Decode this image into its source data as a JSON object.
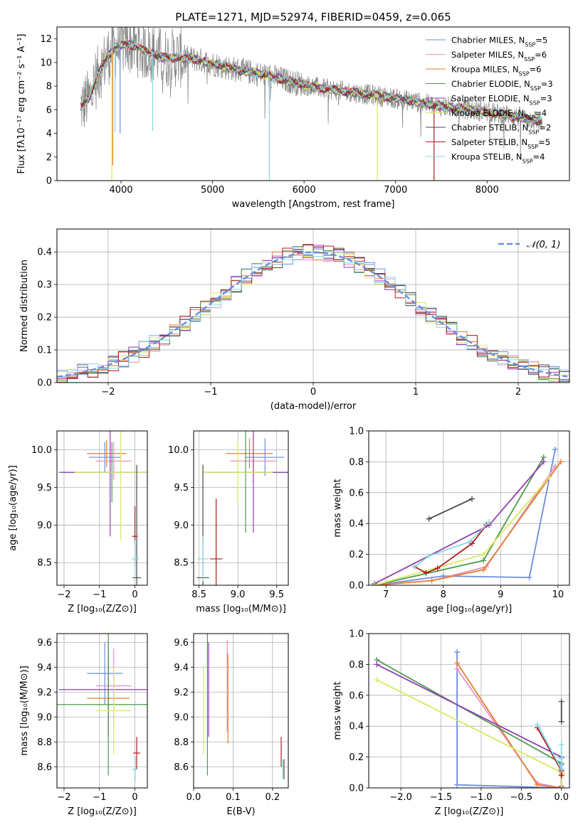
{
  "colors": {
    "Chabrier MILES": "#6a8ee0",
    "Salpeter MILES": "#e68fc8",
    "Kroupa MILES": "#e67e2e",
    "Chabrier ELODIE": "#4e9a4e",
    "Salpeter ELODIE": "#8e3fb0",
    "Kroupa ELODIE": "#d8e860",
    "Chabrier STELIB": "#4a4a4a",
    "Salpeter STELIB": "#b01c1c",
    "Kroupa STELIB": "#88d8e8",
    "data": "#8c8c8c",
    "normal_curve": "#6a8ee0",
    "grid": "#b0b0b0"
  },
  "chart_data": [
    {
      "id": "spectrum",
      "type": "line",
      "title": "PLATE=1271, MJD=52974, FIBERID=0459, z=0.065",
      "xlabel": "wavelength [Angstrom, rest frame]",
      "ylabel": "Flux [fλ10⁻¹⁷ erg cm⁻² s⁻¹ A⁻¹]",
      "xlim": [
        3300,
        8900
      ],
      "ylim": [
        0,
        13
      ],
      "xticks": [
        4000,
        5000,
        6000,
        7000,
        8000
      ],
      "yticks": [
        0,
        2,
        4,
        6,
        8,
        10,
        12
      ],
      "legend_position": "top-right",
      "legend": [
        {
          "series": "Chabrier MILES",
          "label": "Chabrier MILES, N_SSP=5"
        },
        {
          "series": "Salpeter MILES",
          "label": "Salpeter MILES, N_SSP=6"
        },
        {
          "series": "Kroupa MILES",
          "label": "Kroupa MILES, N_SSP=6"
        },
        {
          "series": "Chabrier ELODIE",
          "label": "Chabrier ELODIE, N_SSP=3"
        },
        {
          "series": "Salpeter ELODIE",
          "label": "Salpeter ELODIE, N_SSP=3"
        },
        {
          "series": "Kroupa ELODIE",
          "label": "Kroupa ELODIE, N_SSP=4"
        },
        {
          "series": "Chabrier STELIB",
          "label": "Chabrier STELIB, N_SSP=2"
        },
        {
          "series": "Salpeter STELIB",
          "label": "Salpeter STELIB, N_SSP=5"
        },
        {
          "series": "Kroupa STELIB",
          "label": "Kroupa STELIB, N_SSP=4"
        }
      ],
      "data_envelope": {
        "x": [
          3560,
          3650,
          3750,
          3850,
          3950,
          4050,
          4150,
          4250,
          4350,
          4450,
          4600,
          4800,
          5000,
          5200,
          5400,
          5600,
          5800,
          6000,
          6200,
          6400,
          6600,
          6800,
          7000,
          7200,
          7400,
          7600,
          7800,
          8000,
          8200,
          8400,
          8600
        ],
        "y": [
          6.2,
          7.0,
          9.0,
          10.5,
          11.3,
          11.6,
          11.4,
          11.0,
          10.8,
          10.4,
          10.4,
          10.3,
          9.9,
          9.5,
          9.2,
          8.9,
          8.5,
          8.1,
          7.8,
          7.6,
          7.4,
          7.2,
          6.95,
          6.7,
          6.4,
          6.2,
          6.0,
          5.8,
          5.6,
          5.3,
          5.0
        ]
      },
      "model_dips": [
        {
          "series": "Kroupa ELODIE",
          "x": 3900,
          "y": 0
        },
        {
          "series": "Kroupa MILES",
          "x": 3910,
          "y": 1.3
        },
        {
          "series": "Kroupa STELIB",
          "x": 3935,
          "y": 4.1
        },
        {
          "series": "Chabrier MILES",
          "x": 3990,
          "y": 4.0
        },
        {
          "series": "Kroupa STELIB",
          "x": 4345,
          "y": 4.2
        },
        {
          "series": "Kroupa STELIB",
          "x": 5620,
          "y": 0
        },
        {
          "series": "Kroupa ELODIE",
          "x": 6800,
          "y": 0
        },
        {
          "series": "Salpeter STELIB",
          "x": 7420,
          "y": 0
        }
      ]
    },
    {
      "id": "residuals",
      "type": "line",
      "xlabel": "(data-model)/error",
      "ylabel": "Normed distribution",
      "xlim": [
        -2.5,
        2.5
      ],
      "ylim": [
        0,
        0.47
      ],
      "xticks": [
        -2,
        -1,
        0,
        1,
        2
      ],
      "yticks": [
        0.0,
        0.1,
        0.2,
        0.3,
        0.4
      ],
      "legend": [
        {
          "label": "𝒩(0, 1)"
        }
      ],
      "legend_position": "top-right",
      "normal": {
        "mean": 0,
        "sigma": 1
      }
    },
    {
      "id": "age_vs_Z",
      "type": "scatter",
      "xlabel": "Z [log₁₀(Z/Z⊙)]",
      "ylabel": "age  [log₁₀(age/yr)]",
      "xlim": [
        -2.2,
        0.35
      ],
      "ylim": [
        8.2,
        10.25
      ],
      "xticks": [
        -2,
        -1,
        0
      ],
      "yticks": [
        8.5,
        9.0,
        9.5,
        10.0
      ],
      "points": [
        {
          "series": "Kroupa MILES",
          "x": -0.8,
          "y": 9.95,
          "xerr": 0.55,
          "yerr": 0.18
        },
        {
          "series": "Chabrier MILES",
          "x": -0.85,
          "y": 9.9,
          "xerr": 0.45,
          "yerr": 0.2
        },
        {
          "series": "Salpeter MILES",
          "x": -0.6,
          "y": 9.85,
          "xerr": 0.5,
          "yerr": 0.25
        },
        {
          "series": "Chabrier ELODIE",
          "x": -0.65,
          "y": 9.7,
          "xerr": 1.5,
          "yerr": 0.4
        },
        {
          "series": "Salpeter ELODIE",
          "x": -0.7,
          "y": 9.7,
          "xerr": 1.4,
          "yerr": 0.85
        },
        {
          "series": "Kroupa ELODIE",
          "x": -0.4,
          "y": 9.7,
          "xerr": 1.3,
          "yerr": 0.9
        },
        {
          "series": "Chabrier STELIB",
          "x": 0.05,
          "y": 8.3,
          "xerr": 0.12,
          "yerr": 1.5
        },
        {
          "series": "Salpeter STELIB",
          "x": 0.0,
          "y": 8.85,
          "xerr": 0.08,
          "yerr": 0.4
        },
        {
          "series": "Kroupa STELIB",
          "x": 0.0,
          "y": 8.55,
          "xerr": 0.1,
          "yerr": 0.25
        }
      ]
    },
    {
      "id": "age_vs_mass",
      "type": "scatter",
      "xlabel": "mass [log₁₀(M/M⊙)]",
      "ylabel": "",
      "xlim": [
        8.43,
        9.65
      ],
      "ylim": [
        8.2,
        10.25
      ],
      "xticks": [
        8.5,
        9.0,
        9.5
      ],
      "yticks": [
        8.5,
        9.0,
        9.5,
        10.0
      ],
      "points": [
        {
          "series": "Kroupa MILES",
          "x": 9.15,
          "y": 9.95,
          "xerr": 0.3,
          "yerr": 0.2
        },
        {
          "series": "Chabrier MILES",
          "x": 9.35,
          "y": 9.9,
          "xerr": 0.25,
          "yerr": 0.25
        },
        {
          "series": "Salpeter MILES",
          "x": 9.2,
          "y": 9.85,
          "xerr": 0.3,
          "yerr": 0.3
        },
        {
          "series": "Chabrier ELODIE",
          "x": 9.1,
          "y": 9.7,
          "xerr": 0.55,
          "yerr": 0.8
        },
        {
          "series": "Salpeter ELODIE",
          "x": 9.2,
          "y": 9.7,
          "xerr": 0.55,
          "yerr": 0.8
        },
        {
          "series": "Kroupa ELODIE",
          "x": 9.0,
          "y": 9.7,
          "xerr": 0.45,
          "yerr": 0.4
        },
        {
          "series": "Chabrier STELIB",
          "x": 8.55,
          "y": 8.3,
          "xerr": 0.08,
          "yerr": 1.5
        },
        {
          "series": "Salpeter STELIB",
          "x": 8.72,
          "y": 8.55,
          "xerr": 0.08,
          "yerr": 0.8
        },
        {
          "series": "Kroupa STELIB",
          "x": 8.55,
          "y": 8.55,
          "xerr": 0.07,
          "yerr": 0.3
        }
      ]
    },
    {
      "id": "weight_vs_age",
      "type": "line",
      "xlabel": "age  [log₁₀(age/yr)]",
      "ylabel": "mass weight",
      "xlim": [
        6.7,
        10.2
      ],
      "ylim": [
        0,
        1.0
      ],
      "xticks": [
        7,
        8,
        9,
        10
      ],
      "yticks": [
        0.0,
        0.2,
        0.4,
        0.6,
        0.8,
        1.0
      ],
      "series": [
        {
          "series": "Chabrier MILES",
          "x": [
            6.8,
            8.0,
            9.5,
            9.95
          ],
          "y": [
            0.0,
            0.06,
            0.05,
            0.88
          ]
        },
        {
          "series": "Salpeter MILES",
          "x": [
            6.8,
            7.8,
            8.75,
            9.95
          ],
          "y": [
            0.0,
            0.03,
            0.12,
            0.77
          ]
        },
        {
          "series": "Kroupa MILES",
          "x": [
            6.8,
            7.8,
            8.7,
            10.05
          ],
          "y": [
            0.0,
            0.03,
            0.1,
            0.8
          ]
        },
        {
          "series": "Chabrier ELODIE",
          "x": [
            6.8,
            8.7,
            9.75
          ],
          "y": [
            0.0,
            0.16,
            0.83
          ]
        },
        {
          "series": "Salpeter ELODIE",
          "x": [
            6.8,
            8.8,
            9.75
          ],
          "y": [
            0.01,
            0.39,
            0.8
          ]
        },
        {
          "series": "Kroupa ELODIE",
          "x": [
            6.8,
            8.7,
            9.85
          ],
          "y": [
            0.0,
            0.2,
            0.7
          ]
        },
        {
          "series": "Chabrier STELIB",
          "x": [
            7.75,
            8.5
          ],
          "y": [
            0.43,
            0.56
          ]
        },
        {
          "series": "Salpeter STELIB",
          "x": [
            7.5,
            7.7,
            7.9,
            8.5,
            8.75
          ],
          "y": [
            0.12,
            0.08,
            0.11,
            0.27,
            0.39
          ]
        },
        {
          "series": "Kroupa STELIB",
          "x": [
            7.5,
            7.75,
            8.45,
            8.8
          ],
          "y": [
            0.12,
            0.19,
            0.28,
            0.41
          ]
        }
      ]
    },
    {
      "id": "mass_vs_Z",
      "type": "scatter",
      "xlabel": "Z [log₁₀(Z/Z⊙)]",
      "ylabel": "mass [log₁₀(M/M⊙)]",
      "xlim": [
        -2.2,
        0.35
      ],
      "ylim": [
        8.43,
        9.67
      ],
      "xticks": [
        -2,
        -1,
        0
      ],
      "yticks": [
        8.6,
        8.8,
        9.0,
        9.2,
        9.4,
        9.6
      ],
      "points": [
        {
          "series": "Chabrier MILES",
          "x": -0.85,
          "y": 9.35,
          "xerr": 0.5,
          "yerr": 0.25
        },
        {
          "series": "Salpeter MILES",
          "x": -0.6,
          "y": 9.25,
          "xerr": 0.5,
          "yerr": 0.3
        },
        {
          "series": "Kroupa MILES",
          "x": -0.75,
          "y": 9.15,
          "xerr": 0.6,
          "yerr": 0.3
        },
        {
          "series": "Salpeter ELODIE",
          "x": -0.75,
          "y": 9.22,
          "xerr": 1.4,
          "yerr": 0.38
        },
        {
          "series": "Chabrier ELODIE",
          "x": -0.75,
          "y": 9.1,
          "xerr": 1.5,
          "yerr": 0.57
        },
        {
          "series": "Kroupa ELODIE",
          "x": -0.6,
          "y": 9.05,
          "xerr": 0.5,
          "yerr": 0.35
        },
        {
          "series": "Chabrier STELIB",
          "x": 0.0,
          "y": 8.58,
          "xerr": 0.05,
          "yerr": 0.1
        },
        {
          "series": "Salpeter STELIB",
          "x": 0.05,
          "y": 8.71,
          "xerr": 0.1,
          "yerr": 0.13
        },
        {
          "series": "Kroupa STELIB",
          "x": 0.0,
          "y": 8.58,
          "xerr": 0.08,
          "yerr": 0.1
        }
      ]
    },
    {
      "id": "mass_vs_EBV",
      "type": "scatter",
      "xlabel": "E(B-V)",
      "ylabel": "",
      "xlim": [
        0.0,
        0.24
      ],
      "ylim": [
        8.43,
        9.67
      ],
      "xticks": [
        0.0,
        0.1,
        0.2
      ],
      "yticks": [
        8.6,
        8.8,
        9.0,
        9.2,
        9.4,
        9.6
      ],
      "points": [
        {
          "series": "Kroupa ELODIE",
          "x": 0.025,
          "y": 9.05,
          "xerr": 0,
          "yerr": 0.35
        },
        {
          "series": "Chabrier ELODIE",
          "x": 0.035,
          "y": 9.1,
          "xerr": 0,
          "yerr": 0.57
        },
        {
          "series": "Salpeter ELODIE",
          "x": 0.038,
          "y": 9.22,
          "xerr": 0,
          "yerr": 0.38
        },
        {
          "series": "Salpeter MILES",
          "x": 0.085,
          "y": 9.25,
          "xerr": 0,
          "yerr": 0.37
        },
        {
          "series": "Kroupa MILES",
          "x": 0.087,
          "y": 9.15,
          "xerr": 0,
          "yerr": 0.36
        },
        {
          "series": "Salpeter STELIB",
          "x": 0.222,
          "y": 8.72,
          "xerr": 0,
          "yerr": 0.12
        },
        {
          "series": "Kroupa STELIB",
          "x": 0.226,
          "y": 8.58,
          "xerr": 0,
          "yerr": 0.08
        },
        {
          "series": "Chabrier STELIB",
          "x": 0.229,
          "y": 8.58,
          "xerr": 0,
          "yerr": 0.08
        }
      ]
    },
    {
      "id": "weight_vs_Z",
      "type": "line",
      "xlabel": "Z [log₁₀(Z/Z⊙)]",
      "ylabel": "mass weight",
      "xlim": [
        -2.4,
        0.1
      ],
      "ylim": [
        0,
        1.0
      ],
      "xticks": [
        -2.0,
        -1.5,
        -1.0,
        -0.5,
        0.0
      ],
      "yticks": [
        0.0,
        0.2,
        0.4,
        0.6,
        0.8,
        1.0
      ],
      "series": [
        {
          "series": "Chabrier MILES",
          "x": [
            -1.3,
            -1.3,
            0.0,
            0.0
          ],
          "y": [
            0.88,
            0.02,
            0.0,
            0.15
          ]
        },
        {
          "series": "Salpeter MILES",
          "x": [
            -1.3,
            -0.3,
            0.0,
            0.0
          ],
          "y": [
            0.77,
            0.03,
            0.0,
            0.12
          ]
        },
        {
          "series": "Kroupa MILES",
          "x": [
            -1.3,
            -0.3,
            0.0,
            0.0
          ],
          "y": [
            0.81,
            0.02,
            0.0,
            0.09
          ]
        },
        {
          "series": "Chabrier ELODIE",
          "x": [
            -2.3,
            0.0,
            0.0
          ],
          "y": [
            0.83,
            0.16,
            0.0
          ]
        },
        {
          "series": "Salpeter ELODIE",
          "x": [
            -2.3,
            0.0,
            0.0
          ],
          "y": [
            0.8,
            0.2,
            0.01
          ]
        },
        {
          "series": "Kroupa ELODIE",
          "x": [
            -2.3,
            0.0,
            0.0
          ],
          "y": [
            0.7,
            0.1,
            0.0
          ]
        },
        {
          "series": "Chabrier STELIB",
          "x": [
            0.0,
            0.0
          ],
          "y": [
            0.43,
            0.56
          ]
        },
        {
          "series": "Salpeter STELIB",
          "x": [
            -0.3,
            0.0,
            0.0,
            0.0
          ],
          "y": [
            0.39,
            0.11,
            0.08,
            0.12
          ]
        },
        {
          "series": "Kroupa STELIB",
          "x": [
            -0.3,
            0.0,
            0.0,
            0.0
          ],
          "y": [
            0.41,
            0.12,
            0.19,
            0.28
          ]
        }
      ]
    }
  ]
}
